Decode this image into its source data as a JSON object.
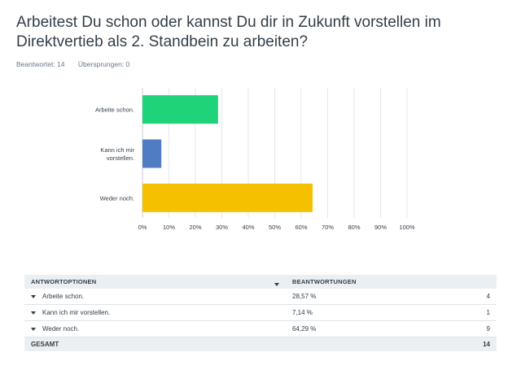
{
  "question": "Arbeitest Du schon oder kannst Du dir in Zukunft vorstellen im Direktvertieb als 2. Standbein zu arbeiten?",
  "stats": {
    "answered": "Beantwortet: 14",
    "skipped": "Übersprungen: 0"
  },
  "chart_data": {
    "type": "bar",
    "orientation": "horizontal",
    "categories": [
      "Arbeite schon.",
      "Kann ich mir vorstellen.",
      "Weder noch."
    ],
    "category_labels": [
      [
        "Arbeite schon."
      ],
      [
        "Kann ich mir",
        "vorstellen."
      ],
      [
        "Weder noch."
      ]
    ],
    "values": [
      28.57,
      7.14,
      64.29
    ],
    "colors": [
      "#1ed37a",
      "#4f7cc2",
      "#f5c000"
    ],
    "xlim": [
      0,
      100
    ],
    "xticks": [
      "0%",
      "10%",
      "20%",
      "30%",
      "40%",
      "50%",
      "60%",
      "70%",
      "80%",
      "90%",
      "100%"
    ],
    "grid": true
  },
  "table": {
    "headers": [
      "ANTWORTOPTIONEN",
      "BEANTWORTUNGEN"
    ],
    "rows": [
      {
        "option": "Arbeite schon.",
        "percent": "28,57 %",
        "count": "4"
      },
      {
        "option": "Kann ich mir vorstellen.",
        "percent": "7,14 %",
        "count": "1"
      },
      {
        "option": "Weder noch.",
        "percent": "64,29 %",
        "count": "9"
      }
    ],
    "total_label": "GESAMT",
    "total_value": "14"
  }
}
